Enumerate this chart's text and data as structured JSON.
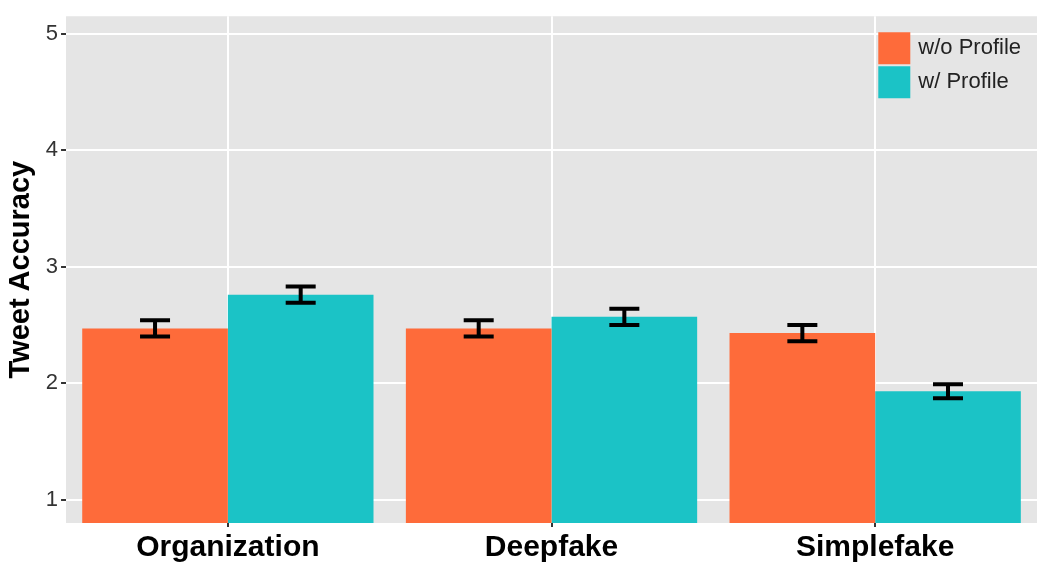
{
  "chart_data": {
    "type": "bar",
    "ylabel": "Tweet Accuracy",
    "categories": [
      "Organization",
      "Deepfake",
      "Simplefake"
    ],
    "series": [
      {
        "name": "w/o Profile",
        "color": "#fe6b3a",
        "values": [
          2.47,
          2.47,
          2.43
        ],
        "errors": [
          0.07,
          0.07,
          0.07
        ]
      },
      {
        "name": "w/ Profile",
        "color": "#1bc3c6",
        "values": [
          2.76,
          2.57,
          1.93
        ],
        "errors": [
          0.07,
          0.07,
          0.06
        ]
      }
    ],
    "ylim": [
      0.8,
      5.15
    ],
    "yticks": [
      1,
      2,
      3,
      4,
      5
    ],
    "grid": true,
    "legend": "top right"
  }
}
